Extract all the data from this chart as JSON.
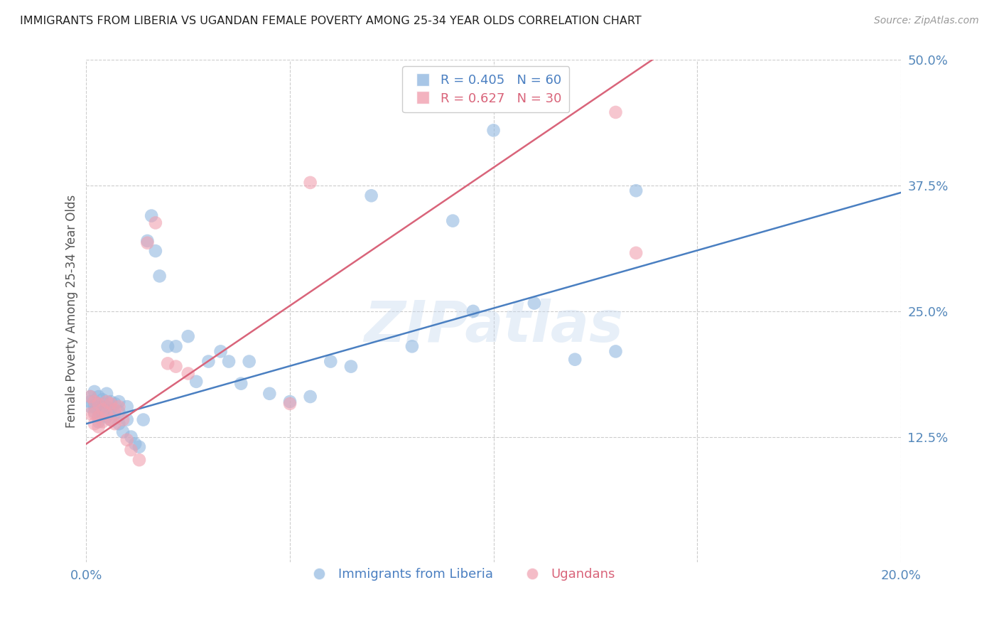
{
  "title": "IMMIGRANTS FROM LIBERIA VS UGANDAN FEMALE POVERTY AMONG 25-34 YEAR OLDS CORRELATION CHART",
  "source": "Source: ZipAtlas.com",
  "ylabel": "Female Poverty Among 25-34 Year Olds",
  "xlim": [
    0.0,
    0.2
  ],
  "ylim": [
    0.0,
    0.5
  ],
  "x_ticks": [
    0.0,
    0.05,
    0.1,
    0.15,
    0.2
  ],
  "x_tick_labels": [
    "0.0%",
    "",
    "",
    "",
    "20.0%"
  ],
  "y_ticks": [
    0.125,
    0.25,
    0.375,
    0.5
  ],
  "y_tick_labels": [
    "12.5%",
    "25.0%",
    "37.5%",
    "50.0%"
  ],
  "legend1_label": "Immigrants from Liberia",
  "legend2_label": "Ugandans",
  "R1": 0.405,
  "N1": 60,
  "R2": 0.627,
  "N2": 30,
  "blue_color": "#92b8e0",
  "pink_color": "#f0a0b0",
  "blue_line_color": "#4a7fc1",
  "pink_line_color": "#d9647a",
  "tick_color": "#5588bb",
  "watermark": "ZIPatlas",
  "blue_x": [
    0.001,
    0.001,
    0.001,
    0.002,
    0.002,
    0.002,
    0.002,
    0.003,
    0.003,
    0.003,
    0.003,
    0.003,
    0.004,
    0.004,
    0.004,
    0.005,
    0.005,
    0.005,
    0.006,
    0.006,
    0.006,
    0.007,
    0.007,
    0.008,
    0.008,
    0.008,
    0.009,
    0.01,
    0.01,
    0.011,
    0.012,
    0.013,
    0.014,
    0.015,
    0.016,
    0.017,
    0.018,
    0.02,
    0.022,
    0.025,
    0.027,
    0.03,
    0.033,
    0.035,
    0.038,
    0.04,
    0.045,
    0.05,
    0.055,
    0.06,
    0.065,
    0.07,
    0.08,
    0.09,
    0.095,
    0.1,
    0.11,
    0.12,
    0.13,
    0.135
  ],
  "blue_y": [
    0.165,
    0.16,
    0.155,
    0.17,
    0.16,
    0.155,
    0.15,
    0.165,
    0.158,
    0.15,
    0.145,
    0.14,
    0.162,
    0.155,
    0.148,
    0.168,
    0.155,
    0.145,
    0.16,
    0.152,
    0.142,
    0.158,
    0.148,
    0.16,
    0.15,
    0.138,
    0.13,
    0.155,
    0.142,
    0.125,
    0.118,
    0.115,
    0.142,
    0.32,
    0.345,
    0.31,
    0.285,
    0.215,
    0.215,
    0.225,
    0.18,
    0.2,
    0.21,
    0.2,
    0.178,
    0.2,
    0.168,
    0.16,
    0.165,
    0.2,
    0.195,
    0.365,
    0.215,
    0.34,
    0.25,
    0.43,
    0.258,
    0.202,
    0.21,
    0.37
  ],
  "pink_x": [
    0.001,
    0.001,
    0.002,
    0.002,
    0.002,
    0.003,
    0.003,
    0.003,
    0.004,
    0.004,
    0.005,
    0.005,
    0.006,
    0.006,
    0.007,
    0.007,
    0.008,
    0.009,
    0.01,
    0.011,
    0.013,
    0.015,
    0.017,
    0.02,
    0.022,
    0.025,
    0.05,
    0.055,
    0.13,
    0.135
  ],
  "pink_y": [
    0.165,
    0.148,
    0.16,
    0.148,
    0.138,
    0.158,
    0.145,
    0.135,
    0.152,
    0.14,
    0.16,
    0.148,
    0.158,
    0.142,
    0.152,
    0.138,
    0.155,
    0.142,
    0.122,
    0.112,
    0.102,
    0.318,
    0.338,
    0.198,
    0.195,
    0.188,
    0.158,
    0.378,
    0.448,
    0.308
  ],
  "blue_intercept": 0.138,
  "blue_slope": 1.15,
  "pink_intercept": 0.118,
  "pink_slope": 2.75,
  "background_color": "#ffffff",
  "grid_color": "#cccccc"
}
